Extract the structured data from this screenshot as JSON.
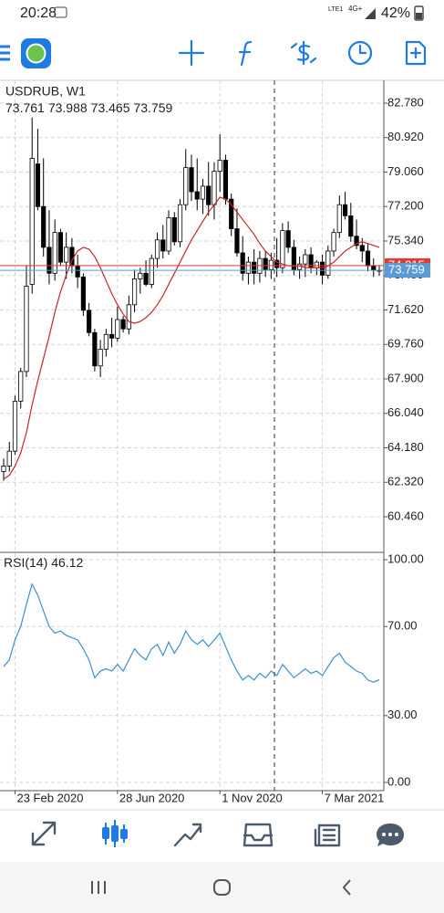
{
  "status_bar": {
    "time": "20:28",
    "network": "4G+",
    "sim": "LTE1",
    "battery": "42%"
  },
  "chart_data": [
    {
      "type": "candlestick",
      "title": "USDRUB, W1",
      "categories": [
        null,
        null,
        "23 Feb 2020",
        null,
        null,
        null,
        null,
        null,
        null,
        null,
        null,
        null,
        null,
        null,
        null,
        null,
        null,
        null,
        null,
        null,
        "28 Jun 2020",
        null,
        null,
        null,
        null,
        null,
        null,
        null,
        null,
        null,
        null,
        null,
        null,
        null,
        null,
        null,
        null,
        null,
        "1 Nov 2020",
        null,
        null,
        null,
        null,
        null,
        null,
        null,
        null,
        null,
        null,
        null,
        null,
        null,
        null,
        null,
        null,
        null,
        "7 Mar 2021",
        null,
        null,
        null,
        null,
        null,
        null,
        null,
        null,
        null,
        null
      ],
      "open": [
        62.9,
        63.2,
        64.0,
        66.7,
        68.3,
        73.0,
        79.5,
        77.2,
        75.0,
        73.6,
        75.8,
        74.2,
        75.0,
        74.0,
        73.4,
        71.6,
        70.4,
        68.6,
        69.5,
        70.3,
        70.1,
        71.1,
        70.6,
        71.9,
        73.3,
        73.6,
        73.0,
        74.4,
        75.4,
        74.8,
        76.6,
        75.3,
        77.3,
        79.3,
        78.0,
        77.6,
        78.3,
        77.3,
        79.1,
        79.7,
        77.6,
        76.0,
        74.7,
        73.6,
        74.2,
        73.6,
        74.4,
        73.8,
        74.3,
        73.9,
        75.9,
        75.0,
        73.8,
        74.1,
        74.6,
        73.9,
        74.2,
        73.5,
        74.8,
        75.8,
        77.3,
        76.7,
        75.6,
        75.1,
        74.8,
        74.0,
        73.761
      ],
      "high": [
        63.6,
        64.5,
        67.0,
        68.5,
        74.0,
        82.0,
        81.4,
        79.8,
        77.0,
        76.5,
        76.0,
        75.8,
        75.5,
        74.6,
        73.6,
        72.0,
        70.6,
        70.0,
        70.6,
        71.2,
        71.8,
        71.3,
        72.4,
        73.8,
        73.9,
        74.3,
        74.6,
        75.8,
        76.2,
        77.0,
        76.9,
        77.6,
        80.3,
        80.0,
        79.8,
        78.7,
        79.6,
        79.6,
        81.1,
        80.0,
        77.9,
        77.1,
        75.6,
        74.5,
        74.9,
        74.8,
        74.8,
        74.7,
        75.5,
        76.3,
        76.4,
        75.4,
        74.5,
        74.9,
        75.0,
        74.3,
        74.6,
        75.1,
        76.0,
        77.8,
        78.0,
        77.4,
        76.5,
        75.5,
        75.2,
        74.4,
        73.988
      ],
      "low": [
        62.4,
        62.9,
        63.8,
        66.3,
        68.0,
        72.5,
        77.0,
        74.5,
        73.0,
        73.2,
        74.0,
        73.3,
        73.6,
        72.8,
        71.3,
        70.2,
        68.3,
        68.0,
        69.1,
        69.6,
        69.9,
        70.4,
        70.3,
        71.5,
        72.5,
        72.9,
        72.8,
        73.9,
        74.4,
        74.6,
        75.1,
        75.0,
        77.0,
        77.5,
        77.0,
        76.8,
        76.7,
        76.5,
        78.0,
        77.3,
        75.6,
        74.5,
        73.2,
        73.0,
        73.0,
        73.1,
        73.4,
        73.3,
        73.4,
        73.6,
        74.7,
        73.5,
        73.3,
        73.4,
        73.6,
        73.5,
        73.0,
        73.3,
        74.5,
        75.5,
        76.5,
        75.3,
        74.9,
        74.2,
        73.7,
        73.4,
        73.465
      ],
      "close": [
        63.2,
        64.0,
        66.7,
        68.3,
        72.9,
        79.8,
        77.2,
        75.0,
        73.6,
        75.8,
        74.2,
        75.0,
        74.0,
        73.4,
        71.6,
        70.4,
        68.6,
        69.5,
        70.3,
        70.1,
        71.1,
        70.6,
        71.9,
        73.3,
        73.6,
        73.0,
        74.4,
        75.4,
        74.8,
        76.6,
        75.3,
        77.3,
        79.3,
        78.0,
        77.6,
        78.3,
        77.3,
        79.1,
        79.7,
        77.6,
        76.0,
        74.7,
        73.6,
        74.2,
        73.6,
        74.4,
        73.8,
        74.3,
        73.9,
        75.9,
        75.0,
        73.8,
        74.1,
        74.6,
        73.9,
        74.2,
        73.5,
        74.8,
        75.8,
        77.3,
        76.7,
        75.6,
        75.1,
        74.8,
        74.0,
        73.761,
        73.759
      ],
      "up_color": "#ffffff",
      "down_color": "#000000",
      "overlays": [
        {
          "color": "#c62828",
          "values": [
            62.5,
            62.7,
            63.2,
            63.9,
            65.0,
            66.5,
            67.8,
            69.0,
            70.2,
            71.5,
            72.6,
            73.5,
            74.3,
            74.8,
            75.0,
            74.9,
            74.5,
            73.9,
            73.2,
            72.5,
            71.9,
            71.4,
            71.0,
            70.9,
            71.0,
            71.2,
            71.5,
            71.9,
            72.4,
            73.0,
            73.6,
            74.2,
            74.8,
            75.4,
            75.9,
            76.4,
            76.9,
            77.3,
            77.7,
            77.6,
            77.3,
            76.9,
            76.5,
            76.1,
            75.7,
            75.2,
            74.8,
            74.5,
            74.2,
            74.1,
            74.0,
            74.0,
            74.0,
            73.9,
            73.9,
            73.9,
            73.9,
            74.0,
            74.2,
            74.5,
            74.8,
            75.0,
            75.2,
            75.3,
            75.2,
            75.1,
            75.0
          ]
        }
      ],
      "ask_line": {
        "value": 74.015,
        "color": "#e53935"
      },
      "bid_color": "#5b9bd5",
      "ylim": [
        58.54,
        84.01
      ],
      "yticks": [
        {
          "value": 82.78,
          "label": "82.780"
        },
        {
          "value": 80.92,
          "label": "80.920"
        },
        {
          "value": 79.06,
          "label": "79.060"
        },
        {
          "value": 77.2,
          "label": "77.200"
        },
        {
          "value": 75.34,
          "label": "75.340"
        },
        {
          "value": 73.48,
          "label": "73.480"
        },
        {
          "value": 71.62,
          "label": "71.620"
        },
        {
          "value": 69.76,
          "label": "69.760"
        },
        {
          "value": 67.9,
          "label": "67.900"
        },
        {
          "value": 66.04,
          "label": "66.040"
        },
        {
          "value": 64.18,
          "label": "64.180"
        },
        {
          "value": 62.32,
          "label": "62.320"
        },
        {
          "value": 60.46,
          "label": "60.460"
        }
      ],
      "grid": true
    },
    {
      "type": "line",
      "title": "RSI(14)",
      "series": [
        {
          "color": "#3a8fd6",
          "values": [
            52,
            55,
            64,
            70,
            80,
            89,
            84,
            77,
            70,
            67,
            68,
            66,
            65,
            64,
            60,
            55,
            47,
            50,
            51,
            50,
            53,
            50,
            55,
            60,
            57,
            55,
            60,
            62,
            57,
            63,
            58,
            62,
            68,
            64,
            62,
            64,
            61,
            64,
            67,
            61,
            55,
            50,
            46,
            48,
            46,
            49,
            47,
            50,
            48,
            53,
            50,
            47,
            49,
            51,
            49,
            50,
            48,
            52,
            56,
            58,
            54,
            52,
            50,
            49,
            46,
            45,
            46.12
          ]
        }
      ],
      "ylim": [
        -3.7,
        103.3
      ],
      "yticks": [
        {
          "value": 0,
          "label": "0.00"
        },
        {
          "value": 30,
          "label": "30.00"
        },
        {
          "value": 70,
          "label": "70.00"
        },
        {
          "value": 100,
          "label": "100.00"
        }
      ],
      "grid": true
    }
  ]
}
